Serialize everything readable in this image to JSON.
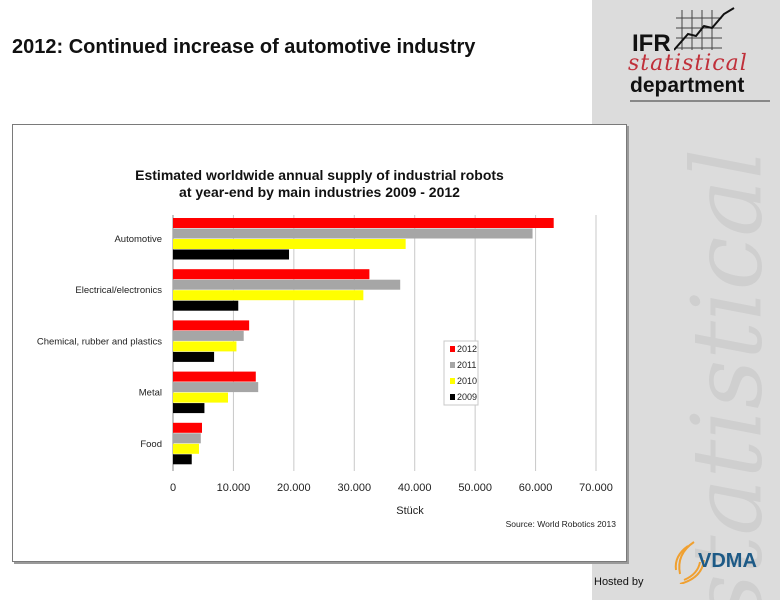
{
  "slide": {
    "title": "2012: Continued increase of automotive industry",
    "hosted_by": "Hosted by",
    "watermark": "statistical"
  },
  "logo": {
    "line1": "IFR",
    "line2": "statistical",
    "line3": "department"
  },
  "sponsor": {
    "name": "VDMA"
  },
  "colors": {
    "2012": "#ff0000",
    "2011": "#a6a6a6",
    "2010": "#ffff00",
    "2009": "#000000"
  },
  "chart_data": {
    "type": "bar",
    "orientation": "horizontal",
    "title": "Estimated worldwide annual supply of industrial robots",
    "subtitle": "at year-end by main industries 2009 - 2012",
    "xlabel": "Stück",
    "ylabel": "",
    "source": "Source: World Robotics 2013",
    "categories": [
      "Automotive",
      "Electrical/electronics",
      "Chemical, rubber and plastics",
      "Metal",
      "Food"
    ],
    "series": [
      {
        "name": "2012",
        "color": "#ff0000",
        "values": [
          63000,
          32500,
          12600,
          13700,
          4800
        ]
      },
      {
        "name": "2011",
        "color": "#a6a6a6",
        "values": [
          59500,
          37600,
          11700,
          14100,
          4600
        ]
      },
      {
        "name": "2010",
        "color": "#ffff00",
        "values": [
          38500,
          31500,
          10500,
          9100,
          4300
        ]
      },
      {
        "name": "2009",
        "color": "#000000",
        "values": [
          19200,
          10800,
          6800,
          5200,
          3100
        ]
      }
    ],
    "xlim": [
      0,
      70000
    ],
    "xticks": [
      0,
      10000,
      20000,
      30000,
      40000,
      50000,
      60000,
      70000
    ],
    "xtick_labels": [
      "0",
      "10.000",
      "20.000",
      "30.000",
      "40.000",
      "50.000",
      "60.000",
      "70.000"
    ],
    "grid": true,
    "legend_position": "center-right",
    "legend": [
      "2012",
      "2011",
      "2010",
      "2009"
    ]
  }
}
